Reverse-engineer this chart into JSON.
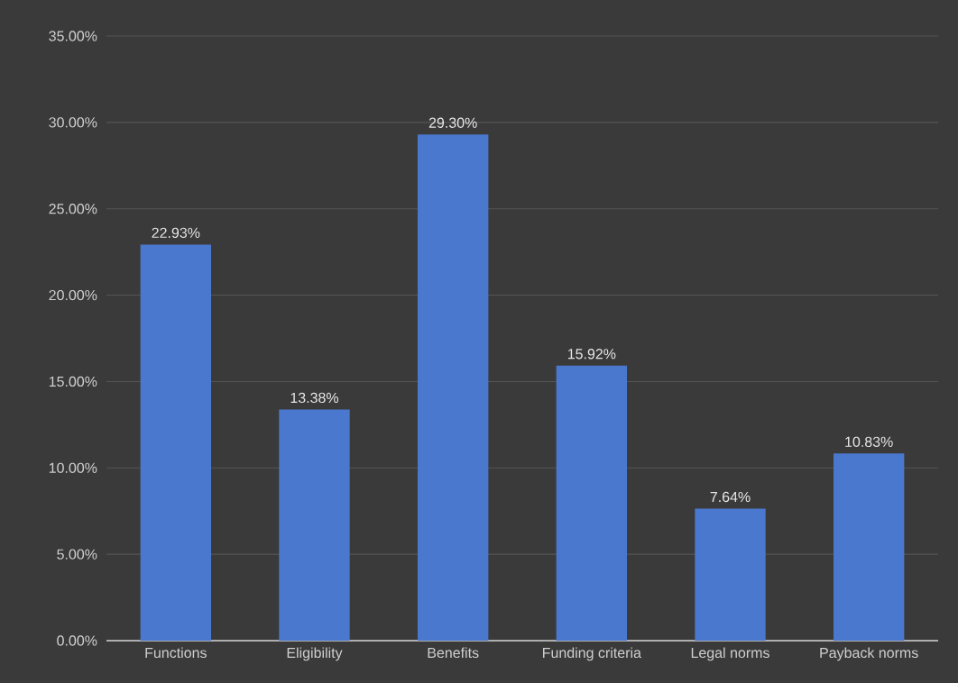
{
  "chart_data": {
    "type": "bar",
    "categories": [
      "Functions",
      "Eligibility",
      "Benefits",
      "Funding criteria",
      "Legal norms",
      "Payback norms"
    ],
    "values": [
      22.93,
      13.38,
      29.3,
      15.92,
      7.64,
      10.83
    ],
    "value_labels": [
      "22.93%",
      "13.38%",
      "29.30%",
      "15.92%",
      "7.64%",
      "10.83%"
    ],
    "color": "#4a78cf",
    "ylim": [
      0,
      35
    ],
    "yticks": [
      {
        "value": 0,
        "label": "0.00%"
      },
      {
        "value": 5,
        "label": "5.00%"
      },
      {
        "value": 10,
        "label": "10.00%"
      },
      {
        "value": 15,
        "label": "15.00%"
      },
      {
        "value": 20,
        "label": "20.00%"
      },
      {
        "value": 25,
        "label": "25.00%"
      },
      {
        "value": 30,
        "label": "30.00%"
      },
      {
        "value": 35,
        "label": "35.00%"
      }
    ],
    "grid": "y"
  }
}
